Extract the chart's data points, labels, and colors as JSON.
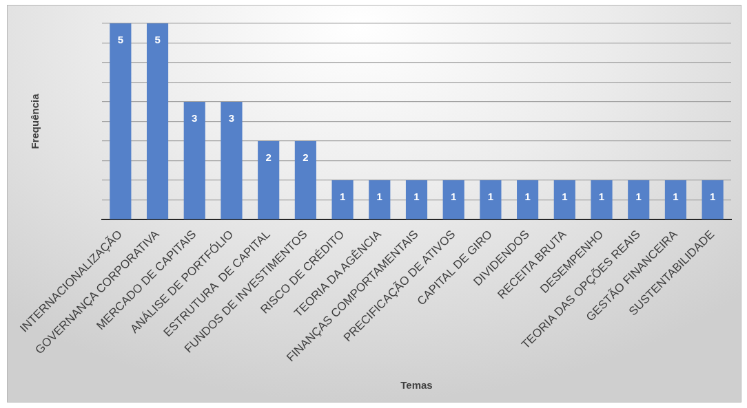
{
  "chart_data": {
    "type": "bar",
    "xlabel": "Temas",
    "ylabel": "Frequência",
    "categories": [
      "INTERNACIONALIZAÇÃO",
      "GOVERNANÇA CORPORATIVA",
      "MERCADO DE CAPITAIS",
      "ANÁLISE DE PORTFÓLIO",
      "ESTRUTURA  DE CAPITAL",
      "FUNDOS DE INVESTIMENTOS",
      "RISCO DE CRÉDITO",
      "TEORIA DA AGÊNCIA",
      "FINANÇAS COMPORTAMENTAIS",
      "PRECIFICAÇÃO DE ATIVOS",
      "CAPITAL DE GIRO",
      "DIVIDENDOS",
      "RECEITA BRUTA",
      "DESEMPENHO",
      "TEORIA DAS OPÇÕES REAIS",
      "GESTÃO FINANCEIRA",
      "SUSTENTABILIDADE"
    ],
    "values": [
      5,
      5,
      3,
      3,
      2,
      2,
      1,
      1,
      1,
      1,
      1,
      1,
      1,
      1,
      1,
      1,
      1
    ],
    "color": "#5581c9",
    "ylim": [
      0,
      5
    ],
    "yticks": [
      {
        "value": 0,
        "label": null
      },
      {
        "value": 0.5,
        "label": null
      },
      {
        "value": 1,
        "label": null
      },
      {
        "value": 1.5,
        "label": null
      },
      {
        "value": 2,
        "label": null
      },
      {
        "value": 2.5,
        "label": null
      },
      {
        "value": 3,
        "label": null
      },
      {
        "value": 3.5,
        "label": null
      },
      {
        "value": 4,
        "label": null
      },
      {
        "value": 4.5,
        "label": null
      },
      {
        "value": 5,
        "label": null
      }
    ],
    "grid": "y",
    "tick_labels": "x",
    "data_labels": true
  }
}
